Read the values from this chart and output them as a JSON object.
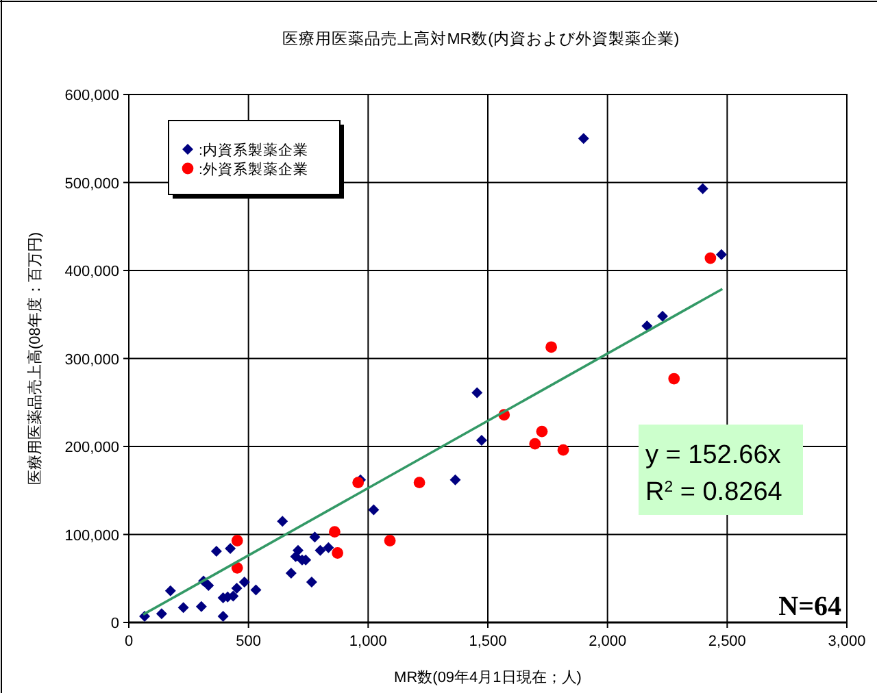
{
  "chart_data": {
    "type": "scatter",
    "title": "医療用医薬品売上高対MR数(内資および外資製薬企業)",
    "xlabel": "MR数(09年4月1日現在；人)",
    "ylabel": "医療用医薬品売上高(08年度：百万円)",
    "xlim": [
      0,
      3000
    ],
    "xticks": [
      0,
      500,
      {
        "value": 1000,
        "label": "1,000"
      },
      {
        "value": 1500,
        "label": "1,500"
      },
      {
        "value": 2000,
        "label": "2,000"
      },
      {
        "value": 2500,
        "label": "2,500"
      },
      {
        "value": 3000,
        "label": "3,000"
      }
    ],
    "ylim": [
      0,
      600000
    ],
    "yticks": [
      0,
      {
        "value": 100000,
        "label": "100,000"
      },
      {
        "value": 200000,
        "label": "200,000"
      },
      {
        "value": 300000,
        "label": "300,000"
      },
      {
        "value": 400000,
        "label": "400,000"
      },
      {
        "value": 500000,
        "label": "500,000"
      },
      {
        "value": 600000,
        "label": "600,000"
      }
    ],
    "grid": true,
    "legend": "top left",
    "series": [
      {
        "name": ":内資系製薬企業",
        "color": "#000080",
        "marker": "diamond",
        "x": [
          66,
          137,
          174,
          228,
          303,
          312,
          333,
          366,
          424,
          394,
          394,
          413,
          436,
          451,
          483,
          531,
          642,
          678,
          697,
          707,
          724,
          739,
          764,
          777,
          800,
          834,
          968,
          1023,
          1364,
          1455,
          1474,
          2165,
          2230,
          1900,
          2398,
          2476
        ],
        "values": [
          7000,
          10000,
          36000,
          17000,
          18000,
          47000,
          42000,
          81000,
          84000,
          7000,
          28000,
          29000,
          30000,
          39000,
          46000,
          37000,
          115000,
          56000,
          75000,
          82000,
          71000,
          71000,
          46000,
          97000,
          82000,
          85000,
          162000,
          128000,
          162000,
          261000,
          207000,
          337000,
          348000,
          550000,
          493000,
          418000
        ]
      },
      {
        "name": ":外資系製薬企業",
        "color": "#ff0000",
        "marker": "circle",
        "x": [
          453,
          453,
          860,
          872,
          958,
          1091,
          1214,
          1568,
          1697,
          1726,
          1815,
          1765,
          2278,
          2430
        ],
        "values": [
          93000,
          62000,
          103000,
          79000,
          159000,
          93000,
          159000,
          236000,
          203000,
          217000,
          196000,
          313000,
          277000,
          414000
        ]
      },
      {
        "type": "line",
        "color": "#339966",
        "marker": "none",
        "x": [
          60,
          2480
        ],
        "values": [
          9000,
          379000
        ]
      }
    ],
    "annotations": [
      "y = 152.66x\nR$^{2}$ = 0.8264",
      "N=64"
    ]
  }
}
